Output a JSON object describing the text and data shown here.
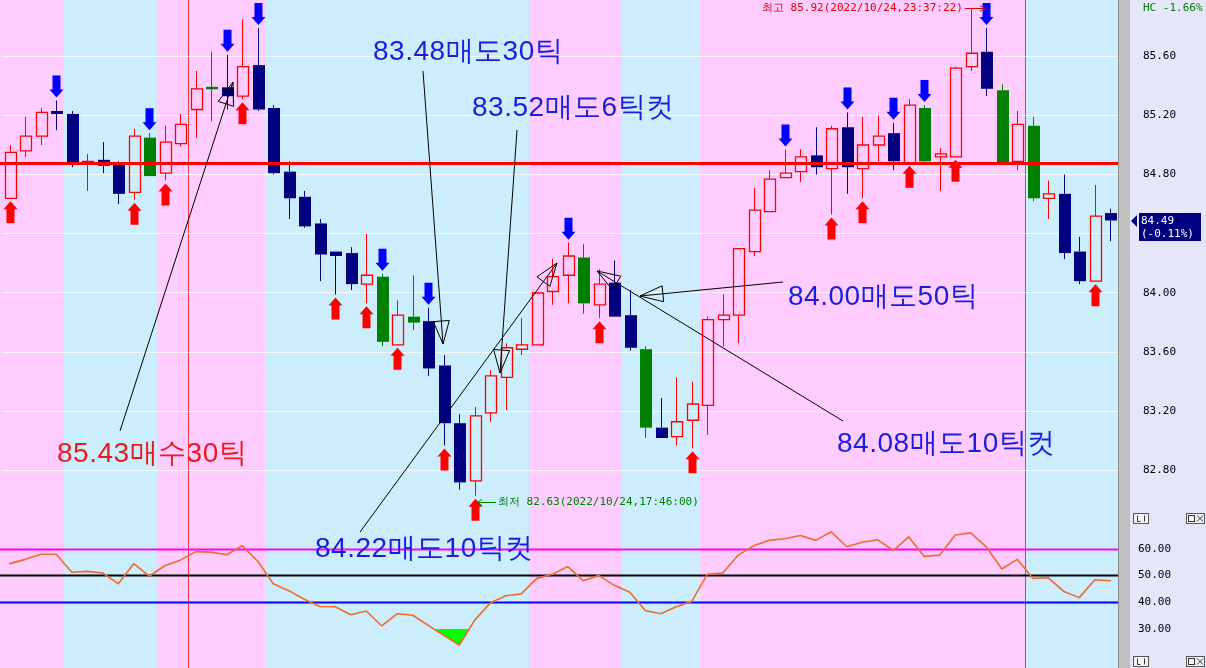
{
  "chart_data": [
    {
      "type": "candlestick",
      "categories": [
        null,
        null,
        null,
        null,
        null,
        null,
        null,
        null,
        null,
        null,
        null,
        null,
        null,
        null,
        null,
        null,
        null,
        null,
        null,
        null,
        null,
        null,
        null,
        null,
        null,
        null,
        null,
        null,
        null,
        null,
        null,
        null,
        null,
        null,
        null,
        null,
        null,
        null,
        null,
        null,
        null,
        null,
        null,
        null,
        null,
        null,
        null,
        null,
        null,
        null,
        null,
        null,
        null,
        null,
        null,
        null,
        null,
        null,
        null,
        null,
        null,
        null,
        null,
        null,
        null,
        null,
        null,
        null,
        null,
        null,
        null,
        null
      ],
      "ohlc": [
        [
          84.64,
          85.0,
          84.64,
          84.95
        ],
        [
          84.96,
          85.19,
          84.92,
          85.06
        ],
        [
          85.06,
          85.25,
          85.0,
          85.22
        ],
        [
          85.23,
          85.3,
          85.1,
          85.21
        ],
        [
          85.21,
          85.23,
          84.85,
          84.88
        ],
        [
          84.88,
          84.94,
          84.69,
          84.89
        ],
        [
          84.9,
          85.02,
          84.81,
          84.86
        ],
        [
          84.87,
          84.89,
          84.6,
          84.67
        ],
        [
          84.68,
          85.11,
          84.63,
          85.06
        ],
        [
          85.05,
          85.08,
          84.79,
          84.79
        ],
        [
          84.81,
          85.13,
          84.76,
          85.02
        ],
        [
          85.01,
          85.21,
          84.99,
          85.14
        ],
        [
          85.24,
          85.5,
          85.05,
          85.38
        ],
        [
          85.39,
          85.63,
          85.16,
          85.38
        ],
        [
          85.39,
          85.61,
          85.24,
          85.33
        ],
        [
          85.33,
          85.85,
          85.31,
          85.53
        ],
        [
          85.54,
          85.79,
          85.23,
          85.24
        ],
        [
          85.25,
          85.27,
          84.8,
          84.81
        ],
        [
          84.82,
          84.89,
          84.5,
          84.64
        ],
        [
          84.65,
          84.69,
          84.44,
          84.45
        ],
        [
          84.47,
          84.5,
          84.08,
          84.26
        ],
        [
          84.28,
          84.28,
          83.99,
          84.25
        ],
        [
          84.27,
          84.31,
          84.02,
          84.06
        ],
        [
          84.06,
          84.4,
          83.93,
          84.12
        ],
        [
          84.11,
          84.13,
          83.64,
          83.67
        ],
        [
          83.65,
          83.95,
          83.65,
          83.85
        ],
        [
          83.84,
          84.12,
          83.75,
          83.8
        ],
        [
          83.81,
          83.9,
          83.44,
          83.49
        ],
        [
          83.51,
          83.58,
          82.97,
          83.12
        ],
        [
          83.12,
          83.18,
          82.67,
          82.72
        ],
        [
          82.73,
          83.23,
          82.63,
          83.17
        ],
        [
          83.19,
          83.48,
          83.13,
          83.44
        ],
        [
          83.43,
          83.66,
          83.21,
          83.63
        ],
        [
          83.62,
          83.83,
          83.58,
          83.65
        ],
        [
          83.65,
          84.0,
          83.65,
          84.0
        ],
        [
          84.01,
          84.23,
          83.92,
          84.11
        ],
        [
          84.12,
          84.34,
          83.93,
          84.25
        ],
        [
          84.24,
          84.33,
          83.86,
          83.93
        ],
        [
          83.92,
          84.16,
          83.83,
          84.06
        ],
        [
          84.07,
          84.22,
          83.84,
          83.84
        ],
        [
          83.85,
          84.02,
          83.61,
          83.63
        ],
        [
          83.62,
          83.64,
          83.02,
          83.09
        ],
        [
          83.09,
          83.29,
          83.02,
          83.02
        ],
        [
          83.03,
          83.43,
          82.97,
          83.13
        ],
        [
          83.14,
          83.4,
          82.95,
          83.25
        ],
        [
          83.24,
          83.84,
          83.04,
          83.82
        ],
        [
          83.82,
          83.99,
          83.64,
          83.85
        ],
        [
          83.85,
          84.3,
          83.66,
          84.3
        ],
        [
          84.28,
          84.71,
          84.25,
          84.56
        ],
        [
          84.55,
          84.83,
          84.55,
          84.77
        ],
        [
          84.78,
          84.97,
          84.78,
          84.81
        ],
        [
          84.82,
          84.97,
          84.75,
          84.92
        ],
        [
          84.93,
          85.12,
          84.8,
          84.85
        ],
        [
          84.84,
          85.13,
          84.53,
          85.11
        ],
        [
          85.12,
          85.22,
          84.67,
          84.85
        ],
        [
          84.84,
          85.19,
          84.64,
          85.0
        ],
        [
          85.0,
          85.2,
          84.89,
          85.06
        ],
        [
          85.08,
          85.15,
          84.83,
          84.89
        ],
        [
          84.88,
          85.31,
          84.88,
          85.27
        ],
        [
          85.25,
          85.27,
          84.88,
          84.89
        ],
        [
          84.92,
          84.98,
          84.69,
          84.94
        ],
        [
          84.92,
          85.53,
          84.92,
          85.52
        ],
        [
          85.53,
          85.92,
          85.5,
          85.62
        ],
        [
          85.63,
          85.79,
          85.33,
          85.38
        ],
        [
          85.37,
          85.41,
          84.88,
          84.88
        ],
        [
          84.89,
          85.23,
          84.83,
          85.14
        ],
        [
          85.13,
          85.19,
          84.62,
          84.64
        ],
        [
          84.64,
          84.76,
          84.5,
          84.67
        ],
        [
          84.67,
          84.8,
          84.23,
          84.27
        ],
        [
          84.28,
          84.38,
          84.06,
          84.08
        ],
        [
          84.08,
          84.73,
          84.08,
          84.52
        ],
        [
          84.54,
          84.57,
          84.35,
          84.49
        ]
      ],
      "colors": [
        "#ff0000",
        "#ff0000",
        "#ff0000",
        "#000080",
        "#000080",
        "#ff0000",
        "#000080",
        "#000080",
        "#ff0000",
        "#008000",
        "#ff0000",
        "#ff0000",
        "#ff0000",
        "#008000",
        "#000080",
        "#ff0000",
        "#000080",
        "#000080",
        "#000080",
        "#000080",
        "#000080",
        "#000080",
        "#000080",
        "#ff0000",
        "#008000",
        "#ff0000",
        "#008000",
        "#000080",
        "#000080",
        "#000080",
        "#ff0000",
        "#ff0000",
        "#ff0000",
        "#ff0000",
        "#ff0000",
        "#ff0000",
        "#ff0000",
        "#008000",
        "#ff0000",
        "#000080",
        "#000080",
        "#008000",
        "#000080",
        "#ff0000",
        "#ff0000",
        "#ff0000",
        "#ff0000",
        "#ff0000",
        "#ff0000",
        "#ff0000",
        "#ff0000",
        "#ff0000",
        "#000080",
        "#ff0000",
        "#000080",
        "#ff0000",
        "#ff0000",
        "#000080",
        "#ff0000",
        "#008000",
        "#ff0000",
        "#ff0000",
        "#ff0000",
        "#000080",
        "#008000",
        "#ff0000",
        "#008000",
        "#ff0000",
        "#000080",
        "#000080",
        "#ff0000",
        "#000080"
      ],
      "ylim": [
        82.52,
        85.98
      ],
      "yticks": [
        {
          "value": 82.8,
          "label": "82.80"
        },
        {
          "value": 83.2,
          "label": "83.20"
        },
        {
          "value": 83.6,
          "label": "83.60"
        },
        {
          "value": 84,
          "label": "84.00"
        },
        {
          "value": 84.4,
          "label": null
        },
        {
          "value": 84.8,
          "label": "84.80"
        },
        {
          "value": 85.2,
          "label": "85.20"
        },
        {
          "value": 85.6,
          "label": "85.60"
        }
      ],
      "grid": "y",
      "ref_lines": [
        {
          "axis": "y",
          "value": 84.88,
          "color": "#ff0000"
        }
      ],
      "annotations": [
        "85.43매수30틱",
        "83.48매도30틱",
        "83.52매도6틱컷",
        "84.22매도10틱컷",
        "84.00매도50틱",
        "84.08매도10틱컷",
        "최저 82.63(2022/10/24,17:46:00)",
        "최고 85.92(2022/10/24,23:37:22)",
        "HC -1.66%",
        "84.49 (-0.11%)"
      ]
    },
    {
      "type": "line",
      "categories": [
        null,
        null,
        null,
        null,
        null,
        null,
        null,
        null,
        null,
        null,
        null,
        null,
        null,
        null,
        null,
        null,
        null,
        null,
        null,
        null,
        null,
        null,
        null,
        null,
        null,
        null,
        null,
        null,
        null,
        null,
        null,
        null,
        null,
        null,
        null,
        null,
        null,
        null,
        null,
        null,
        null,
        null,
        null,
        null,
        null,
        null,
        null,
        null,
        null,
        null,
        null,
        null,
        null,
        null,
        null,
        null,
        null,
        null,
        null,
        null,
        null,
        null,
        null,
        null,
        null,
        null,
        null,
        null,
        null,
        null,
        null,
        null
      ],
      "series": [
        {
          "color": "#f06a28",
          "values": [
            54.4,
            56.0,
            57.9,
            57.9,
            51.2,
            51.5,
            50.9,
            46.9,
            54.4,
            49.7,
            53.6,
            55.7,
            58.9,
            58.7,
            57.7,
            61.1,
            55.3,
            46.9,
            44.3,
            41.1,
            38.4,
            38.3,
            35.3,
            36.7,
            31.1,
            35.7,
            35.1,
            31.3,
            27.6,
            24.0,
            33.3,
            39.7,
            42.4,
            43.1,
            48.9,
            50.4,
            53.3,
            48.0,
            50.0,
            46.3,
            43.7,
            36.9,
            35.7,
            38.3,
            40.3,
            50.4,
            50.9,
            57.6,
            61.1,
            63.1,
            63.7,
            64.9,
            63.1,
            66.3,
            60.7,
            62.4,
            63.3,
            59.3,
            64.4,
            57.1,
            57.6,
            65.1,
            65.9,
            60.7,
            52.4,
            56.0,
            48.9,
            49.1,
            44.0,
            41.7,
            48.4,
            48.0
          ]
        }
      ],
      "ylim": [
        15.4,
        73.7
      ],
      "yticks": [
        {
          "value": 30,
          "label": "30.00"
        },
        {
          "value": 40,
          "label": "40.00"
        },
        {
          "value": 50,
          "label": "50.00"
        },
        {
          "value": 60,
          "label": "60.00"
        }
      ],
      "ref_lines": [
        {
          "axis": "y",
          "value": 60,
          "color": "#ff00ff"
        },
        {
          "axis": "y",
          "value": 50,
          "color": "#000000"
        },
        {
          "axis": "y",
          "value": 40,
          "color": "#0000ff"
        }
      ],
      "marker": "none"
    }
  ]
}
